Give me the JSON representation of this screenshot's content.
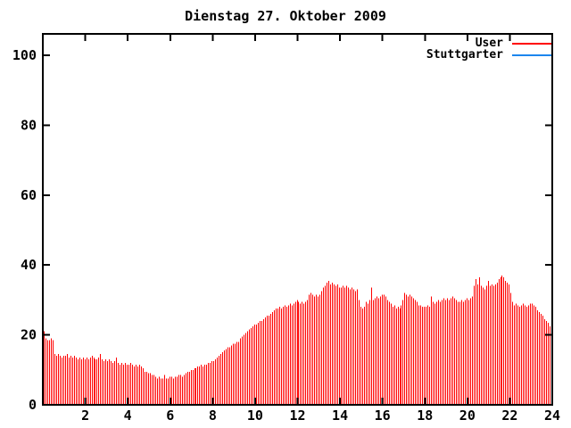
{
  "chart_data": {
    "type": "bar",
    "style": "impulses",
    "title": "Dienstag 27. Oktober 2009",
    "xlabel": "",
    "ylabel": "",
    "xlim": [
      0,
      24
    ],
    "ylim": [
      0,
      106
    ],
    "x_ticks": [
      2,
      4,
      6,
      8,
      10,
      12,
      14,
      16,
      18,
      20,
      22,
      24
    ],
    "y_ticks": [
      0,
      20,
      40,
      60,
      80,
      100
    ],
    "grid": false,
    "legend_position": "top-right-inside",
    "x_unit": "hour-of-day",
    "sample_interval_minutes": 5,
    "series": [
      {
        "name": "User",
        "color": "#ff0000",
        "values": [
          21,
          19,
          18.5,
          18.5,
          19,
          18.5,
          14.5,
          14,
          14.5,
          14,
          13.5,
          14,
          14,
          14.5,
          13.5,
          14,
          13.5,
          14,
          13.5,
          13,
          13.5,
          13,
          13.5,
          13,
          13.5,
          13,
          13.5,
          14,
          13.5,
          13,
          13,
          13.5,
          14.5,
          13,
          12.5,
          13,
          12.5,
          13,
          12.5,
          12,
          12.5,
          13.5,
          12,
          11.5,
          12,
          11.5,
          12,
          11.5,
          11.5,
          12,
          11.5,
          11,
          11.5,
          11,
          11.5,
          11,
          10.5,
          9.5,
          9.5,
          9,
          9,
          8.5,
          8.5,
          8,
          7.5,
          8,
          7.5,
          7.5,
          8.5,
          7.5,
          7.5,
          8,
          8,
          7.5,
          8,
          8,
          8.5,
          8.5,
          8,
          8.5,
          9,
          9.5,
          9.5,
          10,
          10,
          10.5,
          10.5,
          11,
          11,
          11.5,
          11,
          11.5,
          11.5,
          12,
          12,
          12.5,
          12.5,
          13,
          13.5,
          14,
          14.5,
          15,
          15.5,
          16,
          16.5,
          16.5,
          17,
          17.5,
          17.5,
          18,
          18,
          19,
          19.5,
          20,
          20.5,
          21,
          21.5,
          22,
          22.5,
          23,
          23,
          23.5,
          24,
          24,
          24.5,
          25,
          25.5,
          25.5,
          26,
          26.5,
          27,
          27.5,
          27.5,
          28,
          27.5,
          28,
          28.5,
          28,
          28.5,
          29,
          28.5,
          29,
          29.5,
          30,
          29.5,
          29,
          29.5,
          29,
          29.5,
          30,
          31.5,
          32,
          31.5,
          31,
          31.5,
          31,
          31.5,
          32.5,
          33.5,
          34,
          35,
          35.5,
          34.5,
          35,
          34.5,
          34,
          34.5,
          33.5,
          33.5,
          34,
          33.5,
          34,
          33.5,
          33,
          33.5,
          33,
          32.5,
          33,
          30,
          28,
          27.5,
          28,
          29.5,
          29,
          30,
          33.5,
          30,
          30.5,
          31,
          30.5,
          31,
          31.5,
          31.5,
          31,
          30,
          29.5,
          29,
          28,
          28.5,
          27.5,
          28,
          27.5,
          28.5,
          30,
          32,
          31.5,
          31,
          31.5,
          31,
          30.5,
          30,
          29.5,
          28.5,
          28.5,
          28,
          28,
          28,
          28.5,
          28,
          31,
          29.5,
          29,
          29.5,
          30,
          29.5,
          30,
          30.5,
          30,
          30.5,
          30,
          30.5,
          31,
          30.5,
          30,
          29.5,
          29.5,
          30,
          29.5,
          30,
          30.5,
          30,
          30.5,
          31,
          34,
          36,
          34.5,
          36.5,
          34,
          33.5,
          33,
          34,
          35.5,
          34,
          34.5,
          34,
          34.5,
          35,
          36,
          36.5,
          37,
          36.5,
          35.5,
          35,
          34.5,
          32,
          29.5,
          28.5,
          29,
          28.5,
          28,
          28.5,
          29,
          28.5,
          28,
          28.5,
          29,
          29,
          28.5,
          28,
          27,
          26.5,
          26,
          25.5,
          24.5,
          24,
          23.5,
          22.5,
          21.5
        ]
      },
      {
        "name": "Stuttgarter",
        "color": "#1c86ee",
        "values": []
      }
    ]
  },
  "colors": {
    "background": "#ffffff",
    "frame": "#000000",
    "text": "#000000",
    "user_series": "#ff0000",
    "stuttgarter_series": "#1c86ee"
  }
}
